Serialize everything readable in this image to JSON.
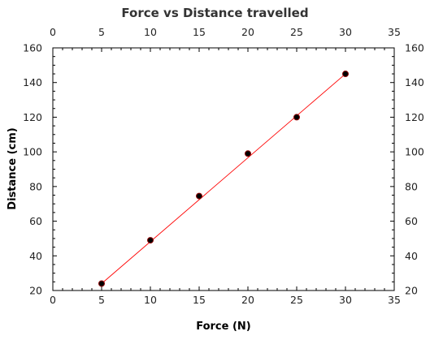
{
  "chart_data": {
    "type": "scatter",
    "title": "Force vs Distance travelled",
    "xlabel": "Force (N)",
    "ylabel": "Distance (cm)",
    "xlim": [
      0,
      35
    ],
    "ylim": [
      20,
      160
    ],
    "x_ticks": [
      0,
      5,
      10,
      15,
      20,
      25,
      30,
      35
    ],
    "y_ticks": [
      20,
      40,
      60,
      80,
      100,
      120,
      140,
      160
    ],
    "x_minor_step": 1,
    "y_minor_step": 5,
    "grid": false,
    "mirror_axes": true,
    "series": [
      {
        "x": [
          5,
          10,
          15,
          20,
          25,
          30
        ],
        "y": [
          24,
          49,
          74.5,
          99,
          120,
          145
        ],
        "marker_color": "#000000",
        "marker_edge": "#8b0000"
      }
    ],
    "fit_line": {
      "x": [
        5,
        30
      ],
      "y": [
        24,
        145
      ],
      "color": "#ff0000"
    }
  }
}
